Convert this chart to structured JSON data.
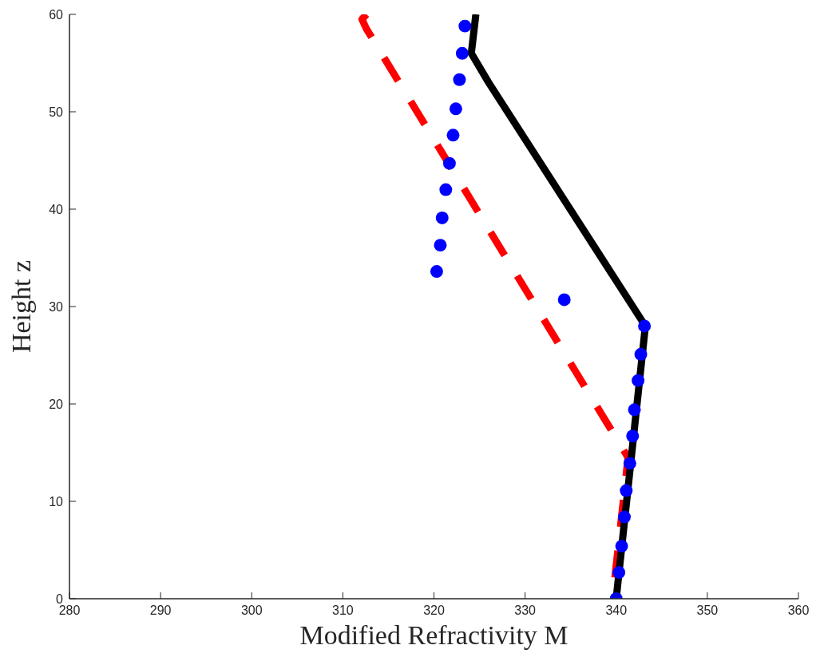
{
  "chart_data": {
    "type": "line",
    "xlabel": "Modified Refractivity M",
    "ylabel": "Height z",
    "xlim": [
      280,
      360
    ],
    "ylim": [
      0,
      60
    ],
    "xticks": [
      280,
      290,
      300,
      310,
      320,
      330,
      340,
      350,
      360
    ],
    "yticks": [
      0,
      10,
      20,
      30,
      40,
      50,
      60
    ],
    "grid": false,
    "series": [
      {
        "color": "#ff0000",
        "line_style": "dashed",
        "x": [
          312.6,
          312.1,
          312.6,
          341.3,
          339.6
        ],
        "values": [
          60,
          59.5,
          58.5,
          14.5,
          0
        ]
      },
      {
        "color": "#000000",
        "line_style": "solid",
        "x": [
          340.0,
          343.2,
          326.0,
          324.1,
          324.6
        ],
        "values": [
          0,
          28,
          53,
          56,
          60
        ]
      },
      {
        "type": "scatter",
        "color": "#0000ff",
        "marker": "circle",
        "x": [
          340.0,
          340.3,
          340.6,
          340.9,
          341.1,
          341.5,
          341.8,
          342.0,
          342.4,
          342.7,
          343.1,
          334.3,
          320.3,
          320.7,
          320.9,
          321.3,
          321.7,
          322.1,
          322.4,
          322.8,
          323.1,
          323.4
        ],
        "values": [
          0,
          2.7,
          5.4,
          8.4,
          11.1,
          13.9,
          16.7,
          19.4,
          22.4,
          25.1,
          28.0,
          30.7,
          33.6,
          36.3,
          39.1,
          42.0,
          44.7,
          47.6,
          50.3,
          53.3,
          56.0,
          58.8
        ]
      }
    ]
  }
}
